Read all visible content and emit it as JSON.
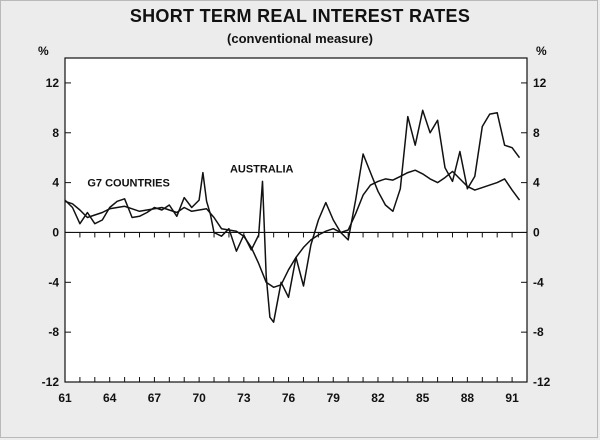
{
  "chart_data": {
    "type": "line",
    "title": "SHORT TERM REAL INTEREST RATES",
    "subtitle": "(conventional measure)",
    "y_unit_left": "%",
    "y_unit_right": "%",
    "ylim": [
      -12,
      14
    ],
    "yticks": [
      12,
      8,
      4,
      0,
      -4,
      -8,
      -12
    ],
    "ytick_labels": [
      "12",
      "8",
      "4",
      "0",
      "-4",
      "-8",
      "-12"
    ],
    "xlim": [
      1961,
      1992
    ],
    "xticks": [
      1961,
      1964,
      1967,
      1970,
      1973,
      1976,
      1979,
      1982,
      1985,
      1988,
      1991
    ],
    "xtick_labels": [
      "61",
      "64",
      "67",
      "70",
      "73",
      "76",
      "79",
      "82",
      "85",
      "88",
      "91"
    ],
    "zero_line": true,
    "grid": false,
    "legend": "none (series labelled on chart)",
    "series": [
      {
        "name": "G7 COUNTRIES",
        "label_anchor": {
          "x": 1962.5,
          "y": 3.7
        },
        "x": [
          1961.0,
          1961.5,
          1962.0,
          1962.5,
          1963.0,
          1963.5,
          1964.0,
          1964.5,
          1965.0,
          1965.5,
          1966.0,
          1966.5,
          1967.0,
          1967.5,
          1968.0,
          1968.5,
          1969.0,
          1969.5,
          1970.0,
          1970.5,
          1971.0,
          1971.5,
          1972.0,
          1972.5,
          1973.0,
          1973.5,
          1974.0,
          1974.5,
          1975.0,
          1975.5,
          1976.0,
          1976.5,
          1977.0,
          1977.5,
          1978.0,
          1978.5,
          1979.0,
          1979.5,
          1980.0,
          1980.5,
          1981.0,
          1981.5,
          1982.0,
          1982.5,
          1983.0,
          1983.5,
          1984.0,
          1984.5,
          1985.0,
          1985.5,
          1986.0,
          1986.5,
          1987.0,
          1987.5,
          1988.0,
          1988.5,
          1989.0,
          1989.5,
          1990.0,
          1990.5,
          1991.0,
          1991.5
        ],
        "values": [
          2.5,
          2.3,
          1.8,
          1.2,
          1.4,
          1.6,
          1.9,
          2.0,
          2.1,
          1.9,
          1.7,
          1.8,
          1.9,
          2.0,
          1.8,
          1.6,
          2.0,
          1.7,
          1.8,
          1.9,
          1.2,
          0.3,
          0.2,
          0.1,
          -0.3,
          -1.2,
          -2.5,
          -4.0,
          -4.4,
          -4.2,
          -3.0,
          -2.0,
          -1.2,
          -0.6,
          -0.2,
          0.1,
          0.3,
          0.0,
          0.2,
          1.5,
          3.0,
          3.8,
          4.1,
          4.3,
          4.2,
          4.5,
          4.8,
          5.0,
          4.7,
          4.3,
          4.0,
          4.4,
          4.9,
          4.3,
          3.7,
          3.4,
          3.6,
          3.8,
          4.0,
          4.3,
          3.4,
          2.6
        ]
      },
      {
        "name": "AUSTRALIA",
        "label_anchor": {
          "x": 1974.2,
          "y": 4.8
        },
        "x": [
          1961.0,
          1961.5,
          1962.0,
          1962.5,
          1963.0,
          1963.5,
          1964.0,
          1964.5,
          1965.0,
          1965.5,
          1966.0,
          1966.5,
          1967.0,
          1967.5,
          1968.0,
          1968.5,
          1969.0,
          1969.5,
          1970.0,
          1970.25,
          1970.5,
          1970.75,
          1971.0,
          1971.5,
          1972.0,
          1972.5,
          1973.0,
          1973.5,
          1974.0,
          1974.25,
          1974.5,
          1974.75,
          1975.0,
          1975.5,
          1976.0,
          1976.5,
          1977.0,
          1977.5,
          1978.0,
          1978.5,
          1979.0,
          1979.5,
          1980.0,
          1980.5,
          1981.0,
          1981.5,
          1982.0,
          1982.5,
          1983.0,
          1983.5,
          1984.0,
          1984.5,
          1985.0,
          1985.5,
          1986.0,
          1986.5,
          1987.0,
          1987.5,
          1988.0,
          1988.5,
          1989.0,
          1989.5,
          1990.0,
          1990.5,
          1991.0,
          1991.5
        ],
        "values": [
          2.6,
          2.0,
          0.7,
          1.6,
          0.7,
          1.0,
          2.0,
          2.5,
          2.7,
          1.2,
          1.3,
          1.6,
          2.0,
          1.8,
          2.2,
          1.3,
          2.8,
          2.0,
          2.6,
          4.8,
          2.5,
          1.5,
          0.0,
          -0.3,
          0.3,
          -1.5,
          -0.2,
          -1.4,
          -0.2,
          4.1,
          -3.5,
          -6.8,
          -7.2,
          -4.0,
          -5.2,
          -2.0,
          -4.3,
          -1.0,
          1.0,
          2.4,
          1.0,
          0.0,
          -0.6,
          2.6,
          6.3,
          4.8,
          3.3,
          2.2,
          1.7,
          3.5,
          9.3,
          7.0,
          9.8,
          8.0,
          9.0,
          5.2,
          4.1,
          6.5,
          3.5,
          4.5,
          8.5,
          9.5,
          9.6,
          7.0,
          6.8,
          6.0
        ]
      }
    ]
  }
}
